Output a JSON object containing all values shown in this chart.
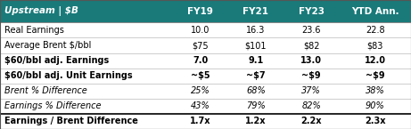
{
  "header_bg": "#1a7a7a",
  "header_text_color": "#ffffff",
  "body_bg": "#ffffff",
  "border_color": "#000000",
  "col_header": "Upstream | $B",
  "columns": [
    "FY19",
    "FY21",
    "FY23",
    "YTD Ann."
  ],
  "rows": [
    {
      "label": "Real Earnings",
      "values": [
        "10.0",
        "16.3",
        "23.6",
        "22.8"
      ],
      "bold": false,
      "italic": false,
      "label_italic": false,
      "label_bold": false
    },
    {
      "label": "Average Brent $/bbl",
      "values": [
        "$75",
        "$101",
        "$82",
        "$83"
      ],
      "bold": false,
      "italic": false,
      "label_italic": false,
      "label_bold": false
    },
    {
      "label": "$60/bbl adj. Earnings",
      "values": [
        "7.0",
        "9.1",
        "13.0",
        "12.0"
      ],
      "bold": true,
      "italic": false,
      "label_italic": false,
      "label_bold": true
    },
    {
      "label": "$60/bbl adj. Unit Earnings",
      "values": [
        "~$5",
        "~$7",
        "~$9",
        "~$9"
      ],
      "bold": true,
      "italic": false,
      "label_italic": false,
      "label_bold": true
    },
    {
      "label": "Brent % Difference",
      "values": [
        "25%",
        "68%",
        "37%",
        "38%"
      ],
      "bold": false,
      "italic": true,
      "label_italic": true,
      "label_bold": false
    },
    {
      "label": "Earnings % Difference",
      "values": [
        "43%",
        "79%",
        "82%",
        "90%"
      ],
      "bold": false,
      "italic": true,
      "label_italic": true,
      "label_bold": false
    },
    {
      "label": "Earnings / Brent Difference",
      "values": [
        "1.7x",
        "1.2x",
        "2.2x",
        "2.3x"
      ],
      "bold": true,
      "italic": false,
      "label_italic": false,
      "label_bold": true
    }
  ],
  "figsize": [
    4.61,
    1.45
  ],
  "dpi": 100
}
